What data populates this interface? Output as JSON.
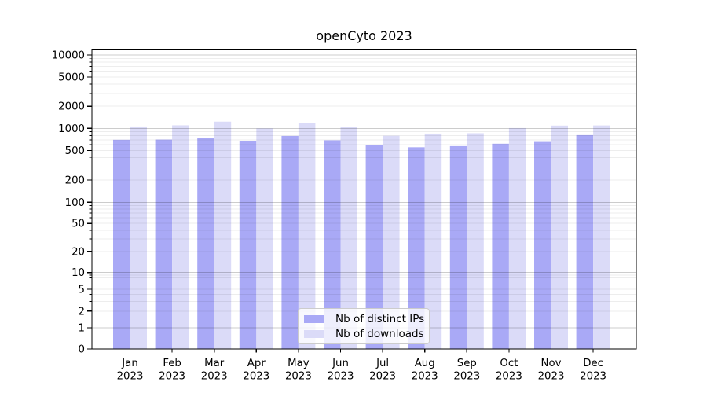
{
  "title": "openCyto 2023",
  "chart_data": {
    "type": "bar",
    "title": "openCyto 2023",
    "categories": [
      "Jan 2023",
      "Feb 2023",
      "Mar 2023",
      "Apr 2023",
      "May 2023",
      "Jun 2023",
      "Jul 2023",
      "Aug 2023",
      "Sep 2023",
      "Oct 2023",
      "Nov 2023",
      "Dec 2023"
    ],
    "months": [
      "Jan",
      "Feb",
      "Mar",
      "Apr",
      "May",
      "Jun",
      "Jul",
      "Aug",
      "Sep",
      "Oct",
      "Nov",
      "Dec"
    ],
    "year": "2023",
    "series": [
      {
        "name": "Nb of distinct IPs",
        "color": "#a9a9f6",
        "values": [
          700,
          705,
          740,
          680,
          790,
          690,
          595,
          555,
          575,
          620,
          655,
          810
        ]
      },
      {
        "name": "Nb of downloads",
        "color": "#dbdbf8",
        "values": [
          1060,
          1100,
          1235,
          1000,
          1195,
          1035,
          795,
          850,
          860,
          1010,
          1090,
          1095
        ]
      }
    ],
    "yscale": "symlog",
    "yticks": [
      0,
      1,
      2,
      5,
      10,
      20,
      50,
      100,
      200,
      500,
      1000,
      2000,
      5000,
      10000
    ],
    "ylim": [
      0,
      12000
    ],
    "xlabel": "",
    "ylabel": "",
    "grid": true,
    "legend_position": "lower center"
  },
  "colors": {
    "grid_major": "rgba(0,0,0,0.20)",
    "grid_minor": "rgba(0,0,0,0.07)",
    "axis": "#000000",
    "text": "#000000",
    "legend_border": "#cccccc",
    "legend_bg": "rgba(255,255,255,0.8)"
  }
}
